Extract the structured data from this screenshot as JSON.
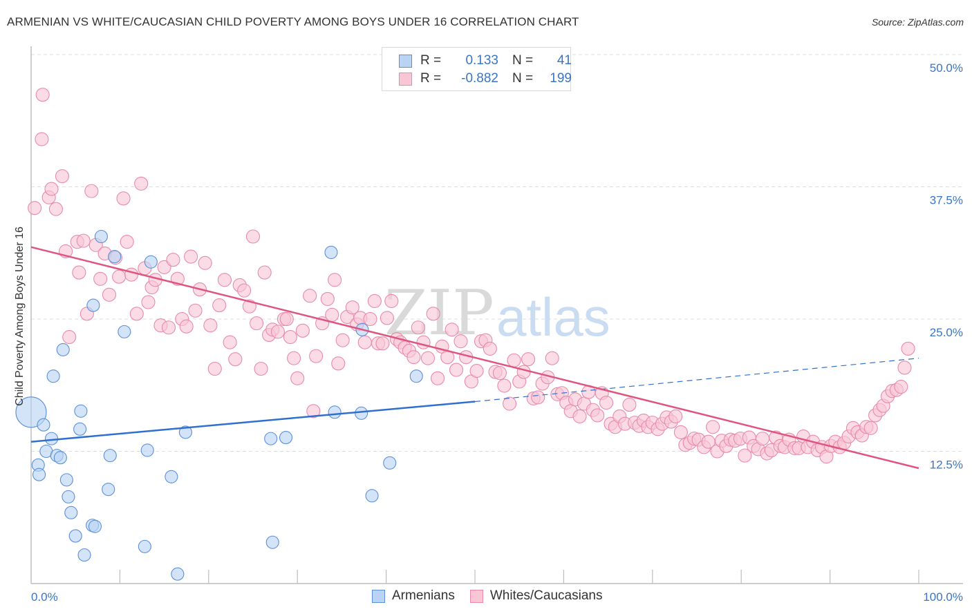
{
  "header": {
    "title": "ARMENIAN VS WHITE/CAUCASIAN CHILD POVERTY AMONG BOYS UNDER 16 CORRELATION CHART",
    "source": "Source: ZipAtlas.com"
  },
  "legend": {
    "rows": [
      {
        "r_label": "R =",
        "r_value": "0.133",
        "n_label": "N =",
        "n_value": "41"
      },
      {
        "r_label": "R =",
        "r_value": "-0.882",
        "n_label": "N =",
        "n_value": "199"
      }
    ]
  },
  "bottom_legend": {
    "items": [
      {
        "label": "Armenians"
      },
      {
        "label": "Whites/Caucasians"
      }
    ]
  },
  "watermark": {
    "zip": "ZIP",
    "atlas": "atlas"
  },
  "colors": {
    "armenian_fill": "#b8d3f3",
    "armenian_stroke": "#5b8fd8",
    "armenian_line": "#2f6fd0",
    "white_fill": "#f9c6d6",
    "white_stroke": "#e88aa8",
    "white_line": "#e0557f",
    "tick_text": "#3a75c4"
  },
  "chart_data": {
    "type": "scatter",
    "title": "ARMENIAN VS WHITE/CAUCASIAN CHILD POVERTY AMONG BOYS UNDER 16 CORRELATION CHART",
    "xlabel": "",
    "ylabel": "Child Poverty Among Boys Under 16",
    "xlim": [
      0,
      100
    ],
    "ylim": [
      0,
      50
    ],
    "x_tick_labels": [
      "0.0%",
      "100.0%"
    ],
    "y_ticks": [
      12.5,
      25.0,
      37.5,
      50.0
    ],
    "y_tick_labels": [
      "12.5%",
      "25.0%",
      "37.5%",
      "50.0%"
    ],
    "grid": true,
    "legend_position": "top-center",
    "series": [
      {
        "name": "Armenians",
        "R": 0.133,
        "N": 41,
        "trend": {
          "x0": 0,
          "y0": 13.4,
          "x1": 50,
          "y1": 17.2,
          "dashed_to_x": 100,
          "dashed_to_y": 21.3
        },
        "points": [
          [
            0,
            16.2,
            "large"
          ],
          [
            1.4,
            15.0
          ],
          [
            2.5,
            19.6
          ],
          [
            0.8,
            11.2
          ],
          [
            0.9,
            10.3
          ],
          [
            1.7,
            12.5
          ],
          [
            2.3,
            13.7
          ],
          [
            2.9,
            12.1
          ],
          [
            3.3,
            11.9
          ],
          [
            3.6,
            22.1
          ],
          [
            4.0,
            9.8
          ],
          [
            4.2,
            8.2
          ],
          [
            4.5,
            6.7
          ],
          [
            5.0,
            4.5
          ],
          [
            5.5,
            14.6
          ],
          [
            5.6,
            16.3
          ],
          [
            6.0,
            2.7
          ],
          [
            6.9,
            5.5
          ],
          [
            7.2,
            5.4
          ],
          [
            7.0,
            26.3
          ],
          [
            7.9,
            32.8
          ],
          [
            8.7,
            8.9
          ],
          [
            8.9,
            12.1
          ],
          [
            9.4,
            30.9
          ],
          [
            10.5,
            23.8
          ],
          [
            12.8,
            3.5
          ],
          [
            13.1,
            12.6
          ],
          [
            13.5,
            30.4
          ],
          [
            15.8,
            10.1
          ],
          [
            16.5,
            0.9
          ],
          [
            17.4,
            14.3
          ],
          [
            27.0,
            13.7
          ],
          [
            27.2,
            3.9
          ],
          [
            28.7,
            13.8
          ],
          [
            33.8,
            31.3
          ],
          [
            34.2,
            16.2
          ],
          [
            37.3,
            24.0
          ],
          [
            37.2,
            16.1
          ],
          [
            38.4,
            8.3
          ],
          [
            40.4,
            11.4
          ],
          [
            43.4,
            19.6
          ]
        ]
      },
      {
        "name": "Whites/Caucasians",
        "R": -0.882,
        "N": 199,
        "trend": {
          "x0": 0,
          "y0": 31.8,
          "x1": 100,
          "y1": 10.9
        },
        "points": [
          [
            0.4,
            35.5
          ],
          [
            1.2,
            42.0
          ],
          [
            1.3,
            46.2
          ],
          [
            2.0,
            36.5
          ],
          [
            2.3,
            37.3
          ],
          [
            2.8,
            35.4
          ],
          [
            3.5,
            38.5
          ],
          [
            3.9,
            31.4
          ],
          [
            4.3,
            23.3
          ],
          [
            5.2,
            32.3
          ],
          [
            5.4,
            29.4
          ],
          [
            5.9,
            32.4
          ],
          [
            6.3,
            25.5
          ],
          [
            6.8,
            37.1
          ],
          [
            7.3,
            32.0
          ],
          [
            7.8,
            28.8
          ],
          [
            8.3,
            31.2
          ],
          [
            8.8,
            27.3
          ],
          [
            9.5,
            30.8
          ],
          [
            9.9,
            29.0
          ],
          [
            10.4,
            36.4
          ],
          [
            10.8,
            32.3
          ],
          [
            11.3,
            29.2
          ],
          [
            11.9,
            25.5
          ],
          [
            12.4,
            37.8
          ],
          [
            12.8,
            29.8
          ],
          [
            13.2,
            26.6
          ],
          [
            13.6,
            28.0
          ],
          [
            14.0,
            28.7
          ],
          [
            14.6,
            24.4
          ],
          [
            15.0,
            29.9
          ],
          [
            15.5,
            24.2
          ],
          [
            16.0,
            30.6
          ],
          [
            16.5,
            28.8
          ],
          [
            17.0,
            25.0
          ],
          [
            17.5,
            24.3
          ],
          [
            18.0,
            30.9
          ],
          [
            18.5,
            25.8
          ],
          [
            19.0,
            27.8
          ],
          [
            19.6,
            30.3
          ],
          [
            20.2,
            24.4
          ],
          [
            20.7,
            20.3
          ],
          [
            21.2,
            26.3
          ],
          [
            21.8,
            28.7
          ],
          [
            22.4,
            22.8
          ],
          [
            23.0,
            21.2
          ],
          [
            23.5,
            28.2
          ],
          [
            24.0,
            27.7
          ],
          [
            24.6,
            26.2
          ],
          [
            25.0,
            32.8
          ],
          [
            25.4,
            24.6
          ],
          [
            25.9,
            20.3
          ],
          [
            26.3,
            29.4
          ],
          [
            26.8,
            23.5
          ],
          [
            27.2,
            24.0
          ],
          [
            27.8,
            23.8
          ],
          [
            28.5,
            25.0
          ],
          [
            28.8,
            25.0
          ],
          [
            29.2,
            23.3
          ],
          [
            29.6,
            21.3
          ],
          [
            30.0,
            19.4
          ],
          [
            30.6,
            23.9
          ],
          [
            31.4,
            27.2
          ],
          [
            31.8,
            16.3
          ],
          [
            32.1,
            21.5
          ],
          [
            32.8,
            24.6
          ],
          [
            33.4,
            26.9
          ],
          [
            33.9,
            25.4
          ],
          [
            34.2,
            28.7
          ],
          [
            34.6,
            20.8
          ],
          [
            35.1,
            23.0
          ],
          [
            35.6,
            25.2
          ],
          [
            36.2,
            26.1
          ],
          [
            36.7,
            24.5
          ],
          [
            37.1,
            25.1
          ],
          [
            37.6,
            22.8
          ],
          [
            38.2,
            25.0
          ],
          [
            38.7,
            26.7
          ],
          [
            39.1,
            22.7
          ],
          [
            39.6,
            22.7
          ],
          [
            40.1,
            25.1
          ],
          [
            40.6,
            26.7
          ],
          [
            41.2,
            23.1
          ],
          [
            41.6,
            22.8
          ],
          [
            42.1,
            22.3
          ],
          [
            42.6,
            22.0
          ],
          [
            43.1,
            21.4
          ],
          [
            43.6,
            24.2
          ],
          [
            44.2,
            22.8
          ],
          [
            44.7,
            21.3
          ],
          [
            45.3,
            25.5
          ],
          [
            45.8,
            19.4
          ],
          [
            46.3,
            22.4
          ],
          [
            46.9,
            21.4
          ],
          [
            47.4,
            24.0
          ],
          [
            47.9,
            20.2
          ],
          [
            48.4,
            22.9
          ],
          [
            49.0,
            21.4
          ],
          [
            49.6,
            19.1
          ],
          [
            50.2,
            20.1
          ],
          [
            50.7,
            22.9
          ],
          [
            51.2,
            23.0
          ],
          [
            51.7,
            22.2
          ],
          [
            52.3,
            20.0
          ],
          [
            52.8,
            19.9
          ],
          [
            53.3,
            18.7
          ],
          [
            53.9,
            17.0
          ],
          [
            54.4,
            21.1
          ],
          [
            55.0,
            19.1
          ],
          [
            55.5,
            20.0
          ],
          [
            56.0,
            21.2
          ],
          [
            56.6,
            17.5
          ],
          [
            57.1,
            17.6
          ],
          [
            57.6,
            18.9
          ],
          [
            58.2,
            19.5
          ],
          [
            58.7,
            21.3
          ],
          [
            59.3,
            17.9
          ],
          [
            59.8,
            18.0
          ],
          [
            60.3,
            17.1
          ],
          [
            60.8,
            16.3
          ],
          [
            61.3,
            17.4
          ],
          [
            61.8,
            15.8
          ],
          [
            62.3,
            17.0
          ],
          [
            62.8,
            18.1
          ],
          [
            63.3,
            16.4
          ],
          [
            63.8,
            15.9
          ],
          [
            64.3,
            18.0
          ],
          [
            64.8,
            17.1
          ],
          [
            65.3,
            15.1
          ],
          [
            65.8,
            14.8
          ],
          [
            66.3,
            15.8
          ],
          [
            66.9,
            15.1
          ],
          [
            67.4,
            16.9
          ],
          [
            68.0,
            15.2
          ],
          [
            68.5,
            14.9
          ],
          [
            69.0,
            15.4
          ],
          [
            69.5,
            14.8
          ],
          [
            70.0,
            15.2
          ],
          [
            70.6,
            14.6
          ],
          [
            71.1,
            15.1
          ],
          [
            71.6,
            15.7
          ],
          [
            72.1,
            15.3
          ],
          [
            72.6,
            15.8
          ],
          [
            73.2,
            14.3
          ],
          [
            73.7,
            13.1
          ],
          [
            74.2,
            13.3
          ],
          [
            74.7,
            13.7
          ],
          [
            75.2,
            13.6
          ],
          [
            75.8,
            12.9
          ],
          [
            76.3,
            13.4
          ],
          [
            76.8,
            14.8
          ],
          [
            77.3,
            12.5
          ],
          [
            77.8,
            13.5
          ],
          [
            78.3,
            13.0
          ],
          [
            78.8,
            13.6
          ],
          [
            79.3,
            13.5
          ],
          [
            79.9,
            13.7
          ],
          [
            80.4,
            12.1
          ],
          [
            80.9,
            13.8
          ],
          [
            81.4,
            13.0
          ],
          [
            81.9,
            12.7
          ],
          [
            82.4,
            13.7
          ],
          [
            82.9,
            12.3
          ],
          [
            83.4,
            12.6
          ],
          [
            83.9,
            13.8
          ],
          [
            84.4,
            13.0
          ],
          [
            84.9,
            12.9
          ],
          [
            85.4,
            13.6
          ],
          [
            86.0,
            12.8
          ],
          [
            86.5,
            12.8
          ],
          [
            87.0,
            13.9
          ],
          [
            87.5,
            12.9
          ],
          [
            88.1,
            13.4
          ],
          [
            88.6,
            12.6
          ],
          [
            89.1,
            12.9
          ],
          [
            89.6,
            12.0
          ],
          [
            90.1,
            13.0
          ],
          [
            90.6,
            13.4
          ],
          [
            91.1,
            12.9
          ],
          [
            91.6,
            13.3
          ],
          [
            92.1,
            13.9
          ],
          [
            92.6,
            14.7
          ],
          [
            93.1,
            14.3
          ],
          [
            93.6,
            14.0
          ],
          [
            94.1,
            14.8
          ],
          [
            94.6,
            14.7
          ],
          [
            95.1,
            15.9
          ],
          [
            95.6,
            16.4
          ],
          [
            96.0,
            16.8
          ],
          [
            96.5,
            17.7
          ],
          [
            97.0,
            18.2
          ],
          [
            97.5,
            18.3
          ],
          [
            98.0,
            18.6
          ],
          [
            98.4,
            20.4
          ],
          [
            98.8,
            22.2
          ]
        ]
      }
    ]
  }
}
